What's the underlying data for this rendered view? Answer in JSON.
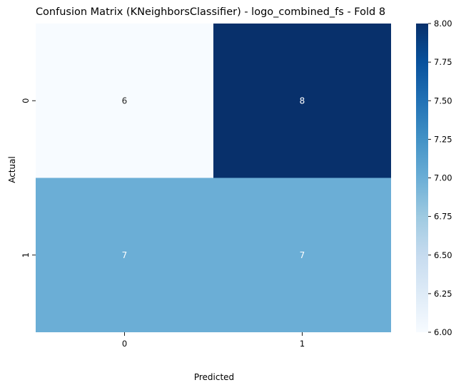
{
  "chart_data": {
    "type": "heatmap",
    "title": "Confusion Matrix (KNeighborsClassifier) - logo_combined_fs - Fold 8",
    "xlabel": "Predicted",
    "ylabel": "Actual",
    "x_categories": [
      "0",
      "1"
    ],
    "y_categories": [
      "0",
      "1"
    ],
    "values": [
      [
        6,
        8
      ],
      [
        7,
        7
      ]
    ],
    "colormap": "Blues",
    "vmin": 6,
    "vmax": 8,
    "colorbar_ticks": [
      "6.00",
      "6.25",
      "6.50",
      "6.75",
      "7.00",
      "7.25",
      "7.50",
      "7.75",
      "8.00"
    ],
    "colors": {
      "low": "#f7fbff",
      "mid": "#6baed6",
      "high": "#08306b",
      "text_dark": "#262626",
      "text_light": "#ffffff"
    }
  }
}
